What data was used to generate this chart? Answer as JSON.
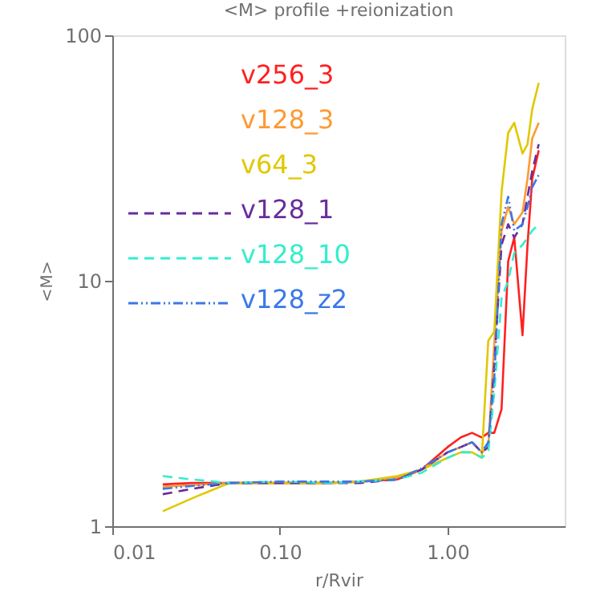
{
  "chart_data": {
    "type": "line",
    "title": "<M> profile   +reionization",
    "xlabel": "r/Rvir",
    "ylabel": "<M>",
    "log": "xy",
    "xlim": [
      0.01,
      5
    ],
    "ylim": [
      1,
      100
    ],
    "xticks": [
      {
        "value": 0.01,
        "label": "0.01"
      },
      {
        "value": 0.1,
        "label": "0.10"
      },
      {
        "value": 1,
        "label": "1.00"
      }
    ],
    "yticks": [
      1,
      10,
      100
    ],
    "grid": false,
    "legend": "top left",
    "x": [
      0.02,
      0.03,
      0.05,
      0.1,
      0.2,
      0.3,
      0.5,
      0.7,
      1.0,
      1.2,
      1.4,
      1.6,
      1.75,
      1.9,
      2.1,
      2.3,
      2.5,
      2.8,
      3.0,
      3.2,
      3.5
    ],
    "series": [
      {
        "name": "v256_3",
        "color": "#ff2020",
        "line_style": "solid",
        "values": [
          1.48,
          1.5,
          1.5,
          1.5,
          1.5,
          1.52,
          1.55,
          1.7,
          2.1,
          2.3,
          2.4,
          2.3,
          2.4,
          2.4,
          3.0,
          12,
          15,
          6,
          14,
          26,
          34
        ]
      },
      {
        "name": "v128_3",
        "color": "#ff9933",
        "line_style": "solid",
        "values": [
          1.45,
          1.47,
          1.5,
          1.5,
          1.5,
          1.52,
          1.58,
          1.7,
          2.0,
          2.1,
          2.2,
          2.0,
          2.1,
          5.5,
          16,
          20,
          17,
          19,
          26,
          38,
          44
        ]
      },
      {
        "name": "v64_3",
        "color": "#e0c800",
        "line_style": "solid",
        "values": [
          1.15,
          1.3,
          1.5,
          1.5,
          1.5,
          1.52,
          1.6,
          1.7,
          1.9,
          2.0,
          2.0,
          1.9,
          5.7,
          6.2,
          23,
          40,
          44,
          33,
          36,
          50,
          64
        ]
      },
      {
        "name": "v128_1",
        "color": "#6a2c9a",
        "line_style": "dashed",
        "values": [
          1.35,
          1.42,
          1.5,
          1.5,
          1.5,
          1.5,
          1.55,
          1.7,
          2.0,
          2.1,
          2.2,
          2.0,
          2.1,
          4.5,
          14,
          17,
          15,
          17,
          22,
          28,
          36
        ]
      },
      {
        "name": "v128_10",
        "color": "#33eecc",
        "line_style": "dashed",
        "values": [
          1.6,
          1.55,
          1.5,
          1.52,
          1.5,
          1.52,
          1.55,
          1.65,
          1.9,
          2.0,
          2.0,
          1.9,
          2.0,
          3.5,
          8.5,
          10,
          13,
          14,
          15,
          16,
          17
        ]
      },
      {
        "name": "v128_z2",
        "color": "#3a78e8",
        "line_style": "dotted",
        "values": [
          1.42,
          1.46,
          1.5,
          1.52,
          1.52,
          1.52,
          1.55,
          1.72,
          2.0,
          2.1,
          2.2,
          2.0,
          2.2,
          4.0,
          17,
          22,
          16,
          17,
          20,
          24,
          27
        ]
      }
    ]
  }
}
